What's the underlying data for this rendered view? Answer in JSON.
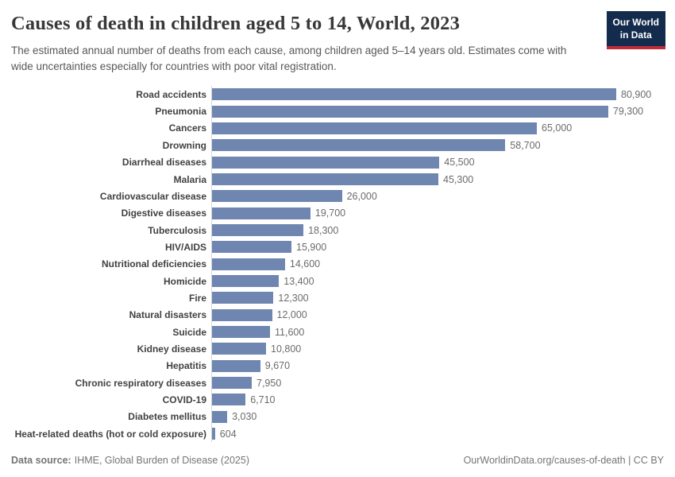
{
  "header": {
    "title": "Causes of death in children aged 5 to 14, World, 2023",
    "subtitle": "The estimated annual number of deaths from each cause, among children aged 5–14 years old. Estimates come with wide uncertainties especially for countries with poor vital registration."
  },
  "logo": {
    "line1": "Our World",
    "line2": "in Data",
    "bg_color": "#132b4d",
    "stripe_color": "#bf2b3a"
  },
  "chart_data": {
    "type": "bar",
    "orientation": "horizontal",
    "title": "Causes of death in children aged 5 to 14, World, 2023",
    "xlabel": "",
    "ylabel": "",
    "xlim": [
      0,
      80900
    ],
    "grid": false,
    "legend": false,
    "bar_color": "#6e86b0",
    "axis_line_color": "#d6d6d6",
    "categories": [
      "Road accidents",
      "Pneumonia",
      "Cancers",
      "Drowning",
      "Diarrheal diseases",
      "Malaria",
      "Cardiovascular disease",
      "Digestive diseases",
      "Tuberculosis",
      "HIV/AIDS",
      "Nutritional deficiencies",
      "Homicide",
      "Fire",
      "Natural disasters",
      "Suicide",
      "Kidney disease",
      "Hepatitis",
      "Chronic respiratory diseases",
      "COVID-19",
      "Diabetes mellitus",
      "Heat-related deaths (hot or cold exposure)"
    ],
    "values": [
      80900,
      79300,
      65000,
      58700,
      45500,
      45300,
      26000,
      19700,
      18300,
      15900,
      14600,
      13400,
      12300,
      12000,
      11600,
      10800,
      9670,
      7950,
      6710,
      3030,
      604
    ],
    "value_labels": [
      "80,900",
      "79,300",
      "65,000",
      "58,700",
      "45,500",
      "45,300",
      "26,000",
      "19,700",
      "18,300",
      "15,900",
      "14,600",
      "13,400",
      "12,300",
      "12,000",
      "11,600",
      "10,800",
      "9,670",
      "7,950",
      "6,710",
      "3,030",
      "604"
    ]
  },
  "footer": {
    "data_source_label": "Data source:",
    "data_source_value": "IHME, Global Burden of Disease (2025)",
    "right_text": "OurWorldinData.org/causes-of-death | CC BY"
  }
}
